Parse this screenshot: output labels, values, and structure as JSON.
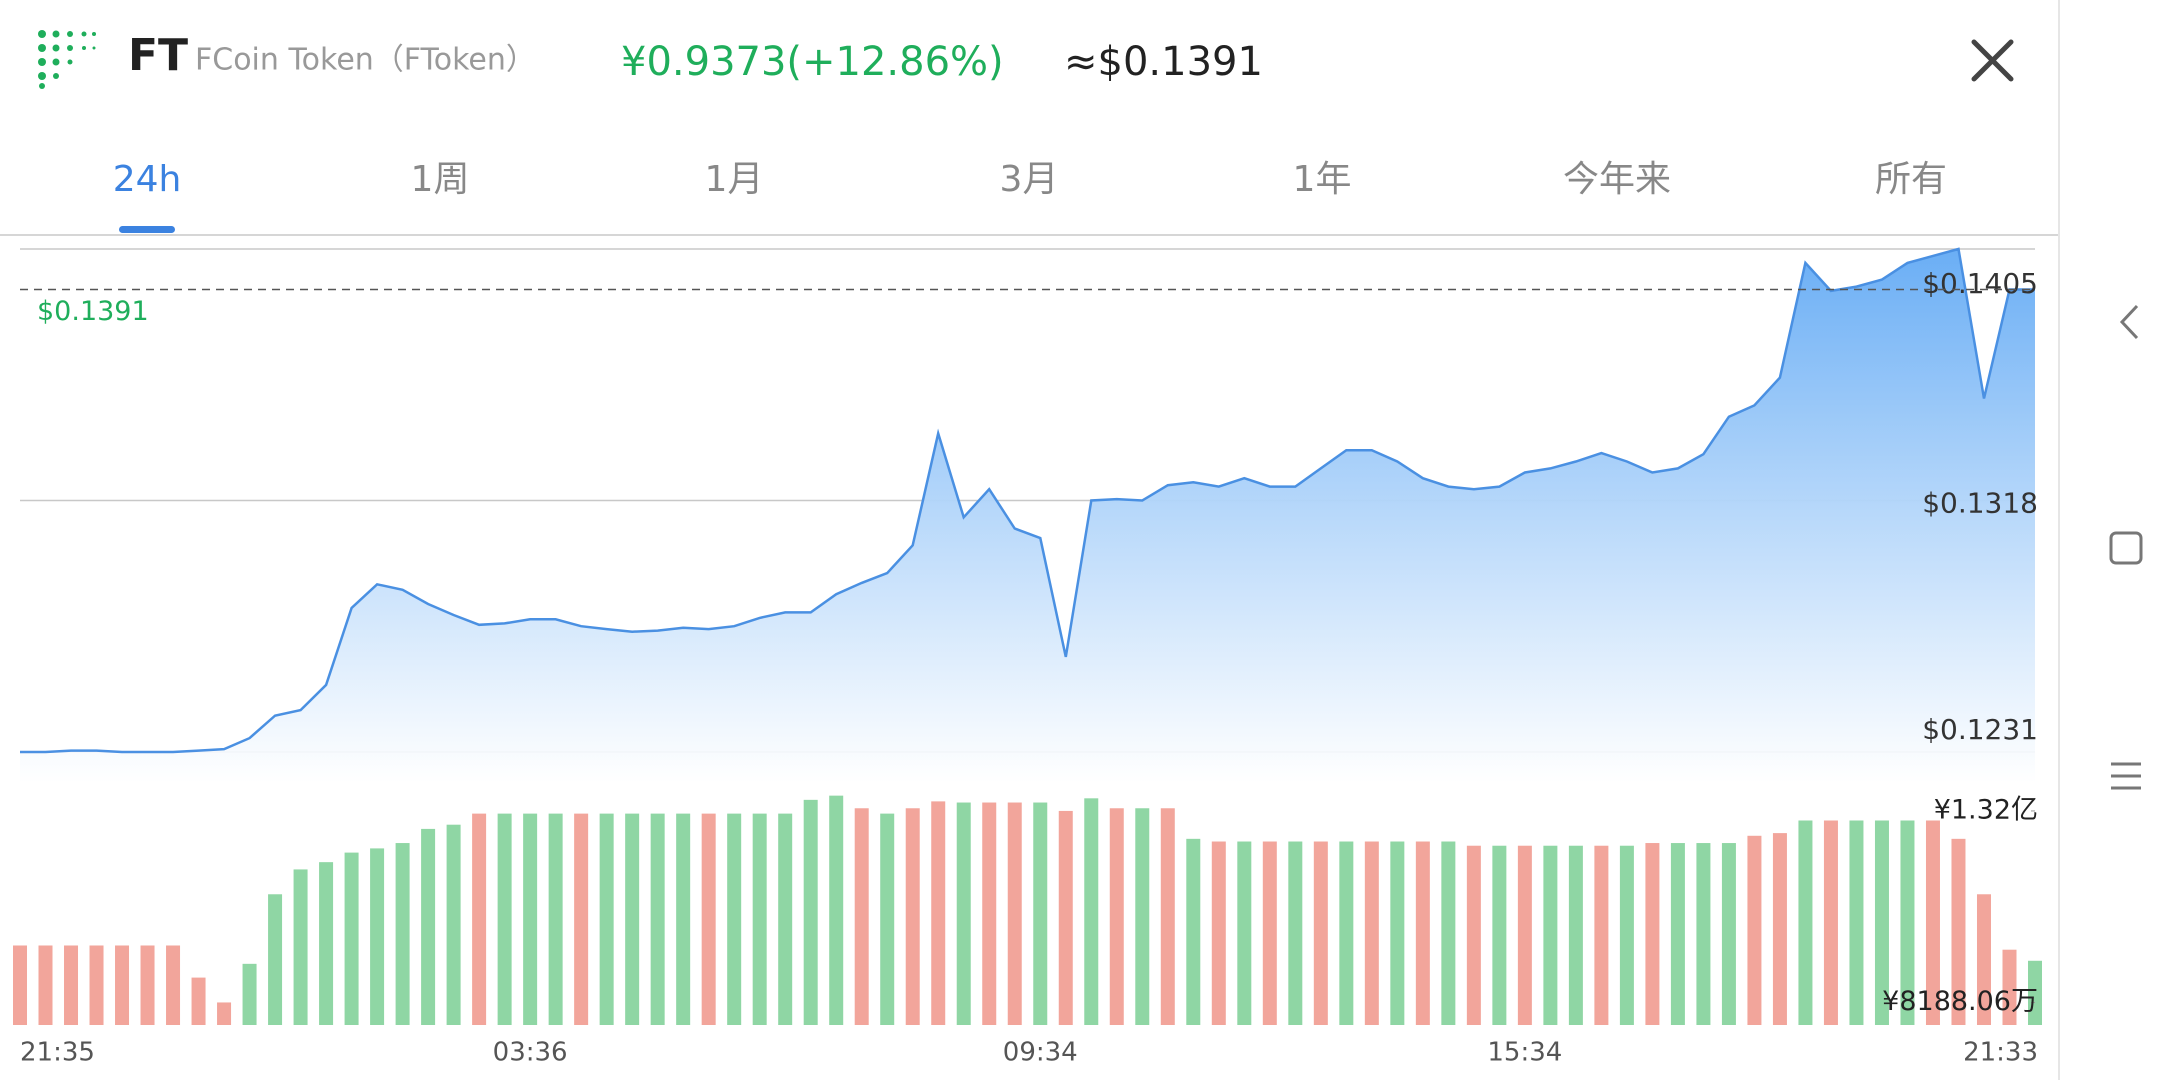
{
  "header": {
    "symbol": "FT",
    "name": "FCoin Token（FToken）",
    "price_cny": "¥0.9373(+12.86%)",
    "price_usd": "≈$0.1391"
  },
  "tabs": [
    "24h",
    "1周",
    "1月",
    "3月",
    "1年",
    "今年来",
    "所有"
  ],
  "active_tab": 0,
  "chart_data": [
    {
      "type": "area",
      "color": "#4a90e2",
      "categories": [
        "21:35",
        null,
        null,
        null,
        null,
        null,
        null,
        null,
        null,
        null,
        null,
        null,
        null,
        null,
        null,
        null,
        null,
        null,
        null,
        null,
        "03:36",
        null,
        null,
        null,
        null,
        null,
        null,
        null,
        null,
        null,
        null,
        null,
        null,
        null,
        null,
        null,
        null,
        null,
        null,
        null,
        "09:34",
        null,
        null,
        null,
        null,
        null,
        null,
        null,
        null,
        null,
        null,
        null,
        null,
        null,
        null,
        null,
        null,
        null,
        null,
        "15:34",
        null,
        null,
        null,
        null,
        null,
        null,
        null,
        null,
        null,
        null,
        null,
        null,
        null,
        null,
        null,
        null,
        null,
        null,
        null,
        "21:33"
      ],
      "values": [
        0.1231,
        0.1231,
        0.12315,
        0.12315,
        0.1231,
        0.1231,
        0.1231,
        0.12315,
        0.1232,
        0.12358,
        0.12436,
        0.12455,
        0.12542,
        0.12808,
        0.1289,
        0.12871,
        0.12822,
        0.12784,
        0.1275,
        0.12755,
        0.12769,
        0.12769,
        0.12745,
        0.12735,
        0.12726,
        0.1273,
        0.1274,
        0.12735,
        0.12745,
        0.12774,
        0.12793,
        0.12793,
        0.12856,
        0.12895,
        0.12929,
        0.13025,
        0.13412,
        0.13122,
        0.13219,
        0.13083,
        0.1305,
        0.12639,
        0.1318,
        0.13185,
        0.1318,
        0.13233,
        0.13243,
        0.13228,
        0.13257,
        0.13228,
        0.13228,
        0.13291,
        0.13354,
        0.13354,
        0.13315,
        0.13257,
        0.13228,
        0.13219,
        0.13228,
        0.13277,
        0.13291,
        0.13315,
        0.13344,
        0.13315,
        0.13277,
        0.13291,
        0.1334,
        0.1347,
        0.13509,
        0.13605,
        0.14002,
        0.13905,
        0.1392,
        0.13944,
        0.14002,
        0.14026,
        0.1405,
        0.13533,
        0.1391,
        0.1391
      ],
      "ylim": [
        0.1231,
        0.1405
      ],
      "yticks": [
        {
          "value": 0.1405,
          "label": "$0.1405"
        },
        {
          "value": 0.1318,
          "label": "$0.1318"
        },
        {
          "value": 0.1231,
          "label": "$0.1231"
        }
      ],
      "current": {
        "value": 0.1391,
        "label": "$0.1391",
        "color": "#1fae5b"
      }
    },
    {
      "type": "bar",
      "values": [
        96800000,
        96800000,
        96800000,
        96800000,
        96800000,
        96800000,
        96800000,
        88400000,
        81900000,
        92000000,
        110200000,
        116700000,
        118600000,
        121100000,
        122200000,
        123600000,
        127300000,
        128400000,
        131300000,
        131300000,
        131300000,
        131300000,
        131300000,
        131300000,
        131300000,
        131300000,
        131300000,
        131300000,
        131300000,
        131300000,
        131300000,
        134900000,
        136000000,
        132700000,
        131300000,
        132700000,
        134500000,
        134200000,
        134200000,
        134200000,
        134200000,
        132000000,
        135300000,
        132700000,
        132700000,
        132700000,
        124700000,
        124000000,
        124000000,
        124000000,
        124000000,
        124000000,
        124000000,
        124000000,
        124000000,
        124000000,
        124000000,
        122900000,
        122900000,
        122900000,
        122900000,
        122900000,
        122900000,
        122900000,
        123600000,
        123600000,
        123600000,
        123600000,
        125500000,
        126200000,
        129500000,
        129500000,
        129500000,
        129500000,
        129500000,
        129500000,
        124700000,
        110200000,
        95700000,
        92800000
      ],
      "colors": [
        "#f2a59b",
        "#f2a59b",
        "#f2a59b",
        "#f2a59b",
        "#f2a59b",
        "#f2a59b",
        "#f2a59b",
        "#f2a59b",
        "#f2a59b",
        "#8fd6a4",
        "#8fd6a4",
        "#8fd6a4",
        "#8fd6a4",
        "#8fd6a4",
        "#8fd6a4",
        "#8fd6a4",
        "#8fd6a4",
        "#8fd6a4",
        "#f2a59b",
        "#8fd6a4",
        "#8fd6a4",
        "#8fd6a4",
        "#f2a59b",
        "#8fd6a4",
        "#8fd6a4",
        "#8fd6a4",
        "#8fd6a4",
        "#f2a59b",
        "#8fd6a4",
        "#8fd6a4",
        "#8fd6a4",
        "#8fd6a4",
        "#8fd6a4",
        "#f2a59b",
        "#8fd6a4",
        "#f2a59b",
        "#f2a59b",
        "#8fd6a4",
        "#f2a59b",
        "#f2a59b",
        "#8fd6a4",
        "#f2a59b",
        "#8fd6a4",
        "#f2a59b",
        "#8fd6a4",
        "#f2a59b",
        "#8fd6a4",
        "#f2a59b",
        "#8fd6a4",
        "#f2a59b",
        "#8fd6a4",
        "#f2a59b",
        "#8fd6a4",
        "#f2a59b",
        "#8fd6a4",
        "#f2a59b",
        "#8fd6a4",
        "#f2a59b",
        "#8fd6a4",
        "#f2a59b",
        "#8fd6a4",
        "#8fd6a4",
        "#f2a59b",
        "#8fd6a4",
        "#f2a59b",
        "#8fd6a4",
        "#8fd6a4",
        "#8fd6a4",
        "#f2a59b",
        "#f2a59b",
        "#8fd6a4",
        "#f2a59b",
        "#8fd6a4",
        "#8fd6a4",
        "#8fd6a4",
        "#f2a59b",
        "#f2a59b",
        "#f2a59b",
        "#f2a59b",
        "#8fd6a4"
      ],
      "ylim": [
        76000000,
        138000000
      ],
      "yticks": [
        {
          "value": 132000000,
          "label": "¥1.32亿"
        },
        {
          "value": 81880600,
          "label": "¥8188.06万"
        }
      ]
    }
  ]
}
